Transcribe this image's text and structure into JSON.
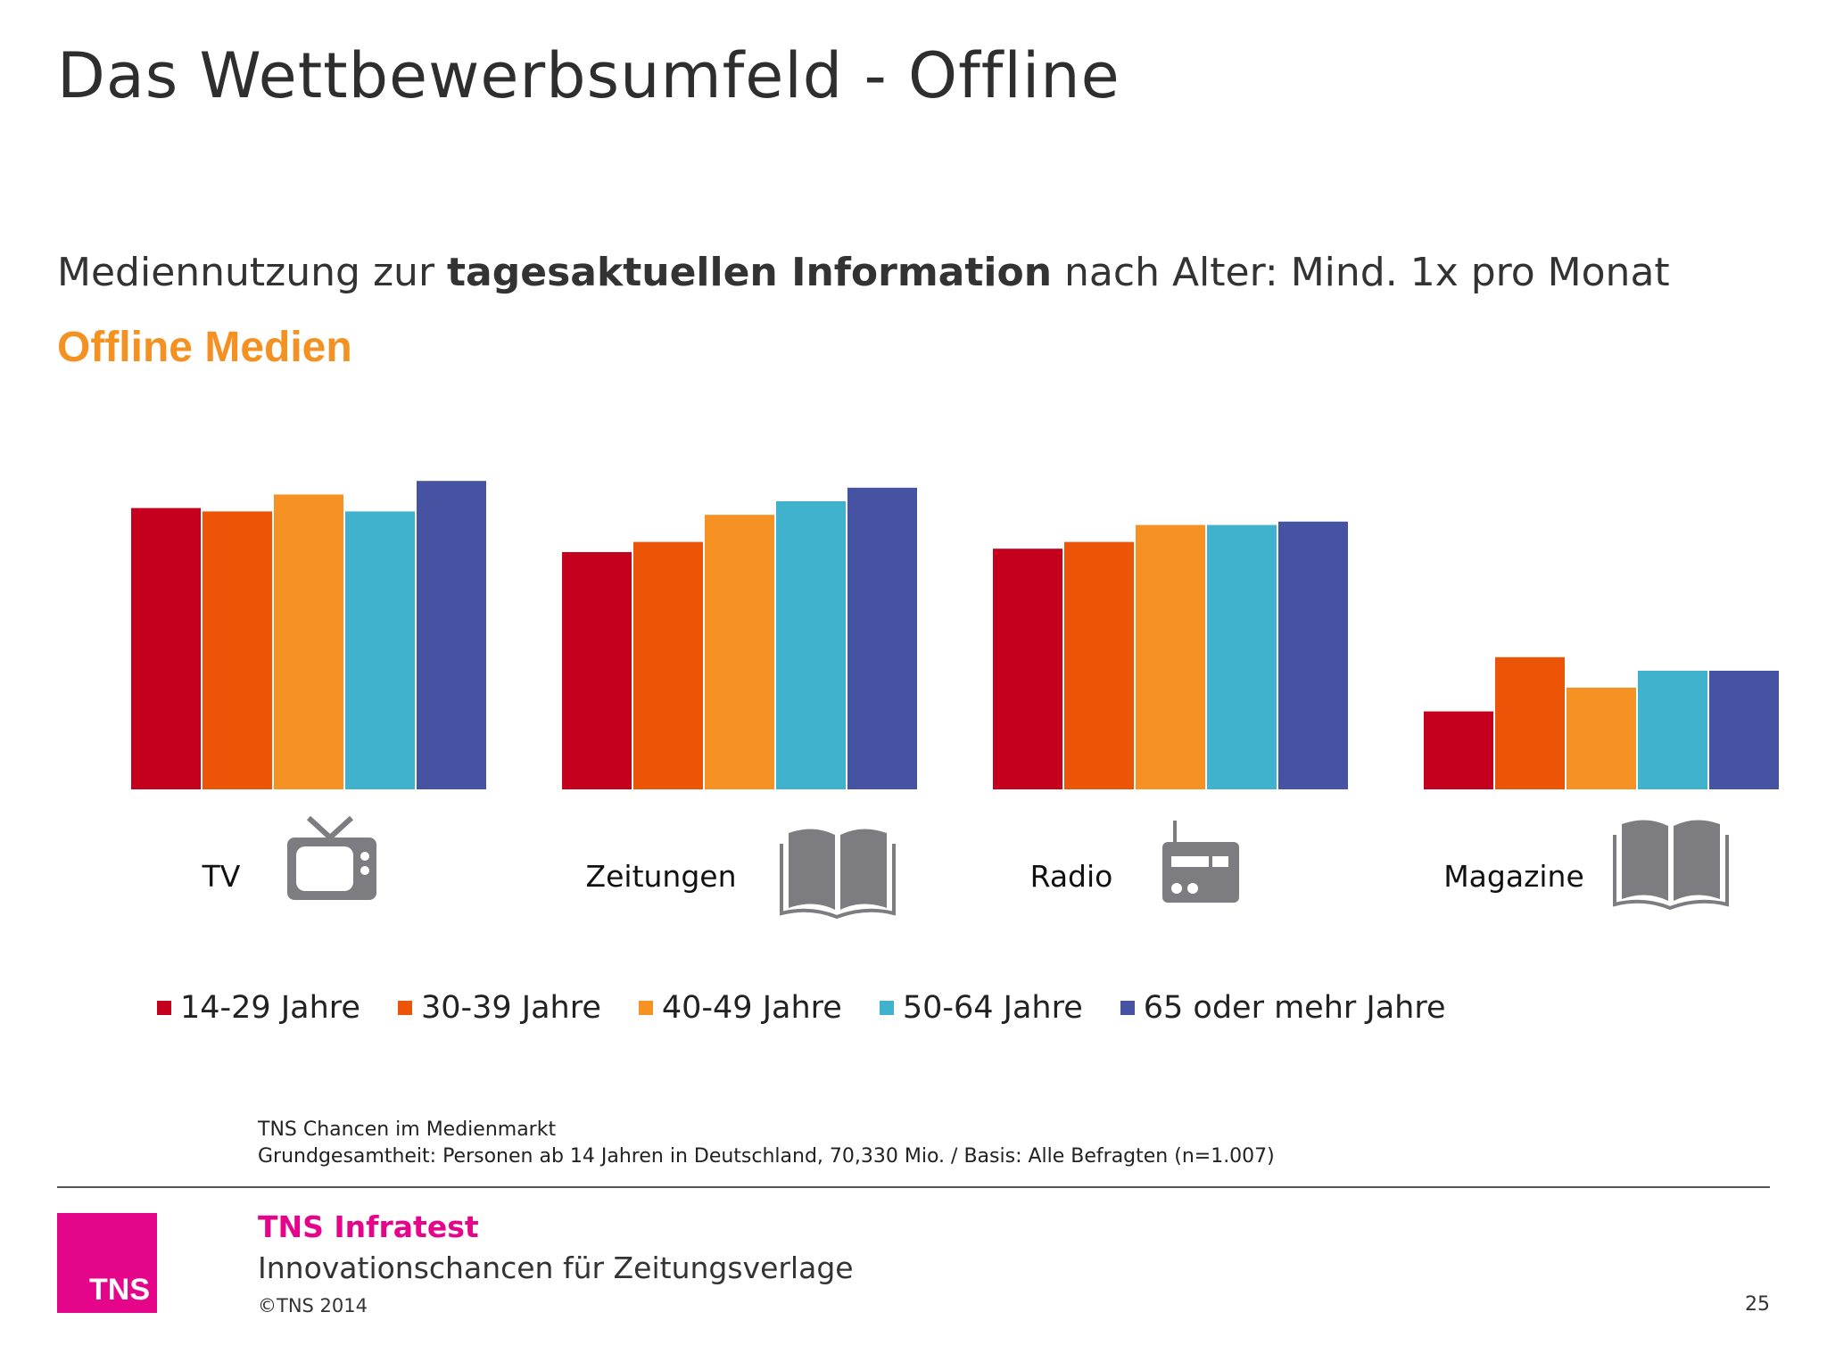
{
  "slide": {
    "title": "Das Wettbewerbsumfeld - Offline",
    "subtitle_prefix": "Mediennutzung zur ",
    "subtitle_bold": "tagesaktuellen Information",
    "subtitle_suffix": " nach Alter: Mind. 1x pro Monat",
    "section_label": "Offline Medien"
  },
  "chart_data": {
    "type": "bar",
    "title": "",
    "xlabel": "",
    "ylabel": "",
    "ylim": [
      0,
      100
    ],
    "grid": false,
    "legend_position": "bottom",
    "categories": [
      "TV",
      "Zeitungen",
      "Radio",
      "Magazine"
    ],
    "category_icons": [
      "tv-icon",
      "newspaper-icon",
      "radio-icon",
      "magazine-icon"
    ],
    "series": [
      {
        "name": "14-29 Jahre",
        "color": "#c4001e",
        "values": [
          83,
          70,
          71,
          23
        ]
      },
      {
        "name": "30-39 Jahre",
        "color": "#ec5408",
        "values": [
          82,
          73,
          73,
          39
        ]
      },
      {
        "name": "40-49 Jahre",
        "color": "#f59223",
        "values": [
          87,
          81,
          78,
          30
        ]
      },
      {
        "name": "50-64 Jahre",
        "color": "#40b2cd",
        "values": [
          82,
          85,
          78,
          35
        ]
      },
      {
        "name": "65 oder mehr Jahre",
        "color": "#4653a3",
        "values": [
          91,
          89,
          79,
          35
        ]
      }
    ]
  },
  "source": {
    "line1_brand": "TNS",
    "line1_text": " Chancen im Medienmarkt",
    "line2": "Grundgesamtheit: Personen ab 14 Jahren in Deutschland, 70,330 Mio. / Basis: Alle Befragten (n=1.007)"
  },
  "footer": {
    "logo_text": "TNS",
    "company": "TNS Infratest",
    "report": "Innovationschancen für Zeitungsverlage",
    "copyright": "©TNS 2014",
    "page_number": "25"
  },
  "colors": {
    "accent_orange": "#f39223",
    "brand_pink": "#e5058a",
    "icon_gray": "#7d7c80"
  }
}
